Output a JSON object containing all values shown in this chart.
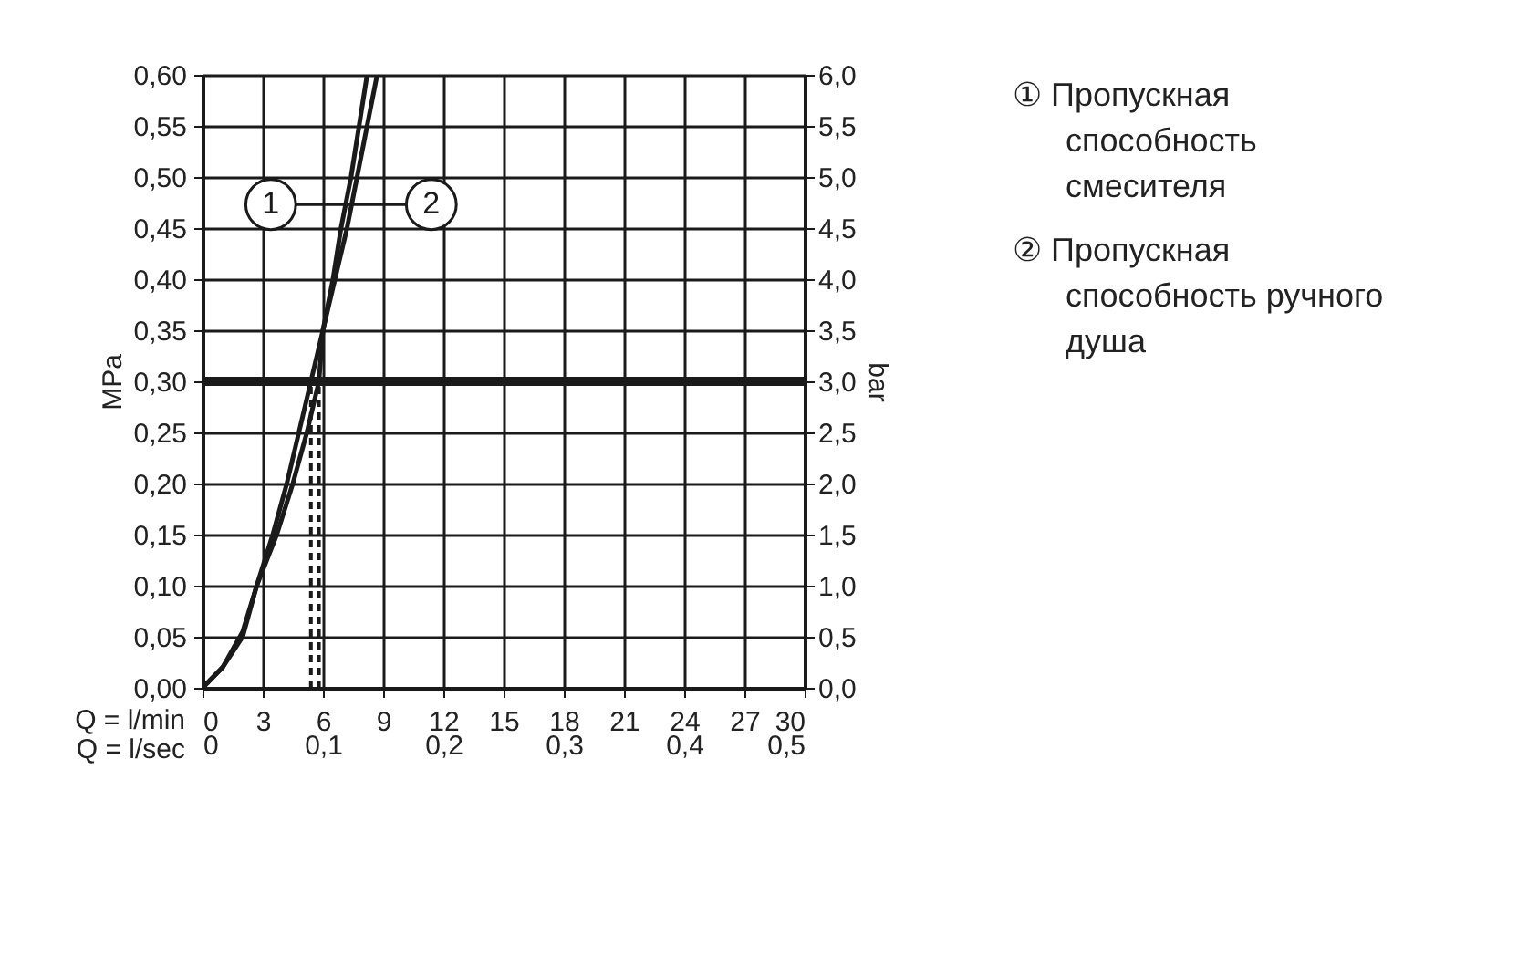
{
  "chart_data": {
    "type": "line",
    "xlabel": "Q = l/min",
    "x2label": "Q = l/sec",
    "ylabel": "MPa",
    "y2label": "bar",
    "xlim": [
      0,
      30
    ],
    "xticks": [
      0,
      3,
      6,
      9,
      12,
      15,
      18,
      21,
      24,
      27,
      30
    ],
    "x2lim": [
      0,
      0.5
    ],
    "x2ticks": [
      0,
      {
        "value": 0.1,
        "label": "0,1"
      },
      {
        "value": 0.2,
        "label": "0,2"
      },
      {
        "value": 0.3,
        "label": "0,3"
      },
      {
        "value": 0.4,
        "label": "0,4"
      },
      {
        "value": 0.5,
        "label": "0,5"
      }
    ],
    "ylim": [
      0,
      0.6
    ],
    "yticks": [
      {
        "value": 0,
        "label": "0,00"
      },
      {
        "value": 0.05,
        "label": "0,05"
      },
      {
        "value": 0.1,
        "label": "0,10"
      },
      {
        "value": 0.15,
        "label": "0,15"
      },
      {
        "value": 0.2,
        "label": "0,20"
      },
      {
        "value": 0.25,
        "label": "0,25"
      },
      {
        "value": 0.3,
        "label": "0,30"
      },
      {
        "value": 0.35,
        "label": "0,35"
      },
      {
        "value": 0.4,
        "label": "0,40"
      },
      {
        "value": 0.45,
        "label": "0,45"
      },
      {
        "value": 0.5,
        "label": "0,50"
      },
      {
        "value": 0.55,
        "label": "0,55"
      },
      {
        "value": 0.6,
        "label": "0,60"
      }
    ],
    "y2lim": [
      0,
      6
    ],
    "y2ticks": [
      {
        "value": 0,
        "label": "0,0"
      },
      {
        "value": 0.5,
        "label": "0,5"
      },
      {
        "value": 1,
        "label": "1,0"
      },
      {
        "value": 1.5,
        "label": "1,5"
      },
      {
        "value": 2,
        "label": "2,0"
      },
      {
        "value": 2.5,
        "label": "2,5"
      },
      {
        "value": 3,
        "label": "3,0"
      },
      {
        "value": 3.5,
        "label": "3,5"
      },
      {
        "value": 4,
        "label": "4,0"
      },
      {
        "value": 4.5,
        "label": "4,5"
      },
      {
        "value": 5,
        "label": "5,0"
      },
      {
        "value": 5.5,
        "label": "5,5"
      },
      {
        "value": 6,
        "label": "6,0"
      }
    ],
    "grid": true,
    "marker": "none",
    "series": [
      {
        "name": "① Пропускная способность смесителя",
        "color": "#1a1a1a",
        "line_style": "solid",
        "x": [
          0,
          1,
          2,
          2.7,
          3.5,
          4.2,
          4.8,
          5.4,
          6.0,
          6.5,
          6.9,
          7.4,
          7.8,
          8.2
        ],
        "values": [
          0,
          0.02,
          0.055,
          0.1,
          0.15,
          0.2,
          0.25,
          0.3,
          0.35,
          0.4,
          0.45,
          0.5,
          0.55,
          0.6
        ]
      },
      {
        "name": "② Пропускная способность ручного душа",
        "color": "#1a1a1a",
        "line_style": "solid",
        "x": [
          0,
          1,
          2,
          2.7,
          3.7,
          4.5,
          5.2,
          5.8,
          6.0,
          6.6,
          7.2,
          7.7,
          8.2,
          8.7
        ],
        "values": [
          0,
          0.02,
          0.05,
          0.1,
          0.15,
          0.2,
          0.25,
          0.3,
          0.35,
          0.4,
          0.45,
          0.5,
          0.55,
          0.6
        ]
      },
      {
        "type": "line",
        "color": "#1a1a1a",
        "line_style": "dashed",
        "x": [
          5.4,
          5.4
        ],
        "values": [
          0,
          0.3
        ]
      },
      {
        "type": "line",
        "color": "#1a1a1a",
        "line_style": "dashed",
        "x": [
          5.8,
          5.8
        ],
        "values": [
          0,
          0.3
        ]
      }
    ],
    "ref_lines": [
      {
        "axis": "y",
        "value": 0.3,
        "color": "#1a1a1a"
      }
    ],
    "annotations": [
      {
        "text": "1",
        "x": 3.4,
        "y": 0.473
      },
      {
        "text": "2",
        "x": 11.4,
        "y": 0.473
      }
    ]
  }
}
